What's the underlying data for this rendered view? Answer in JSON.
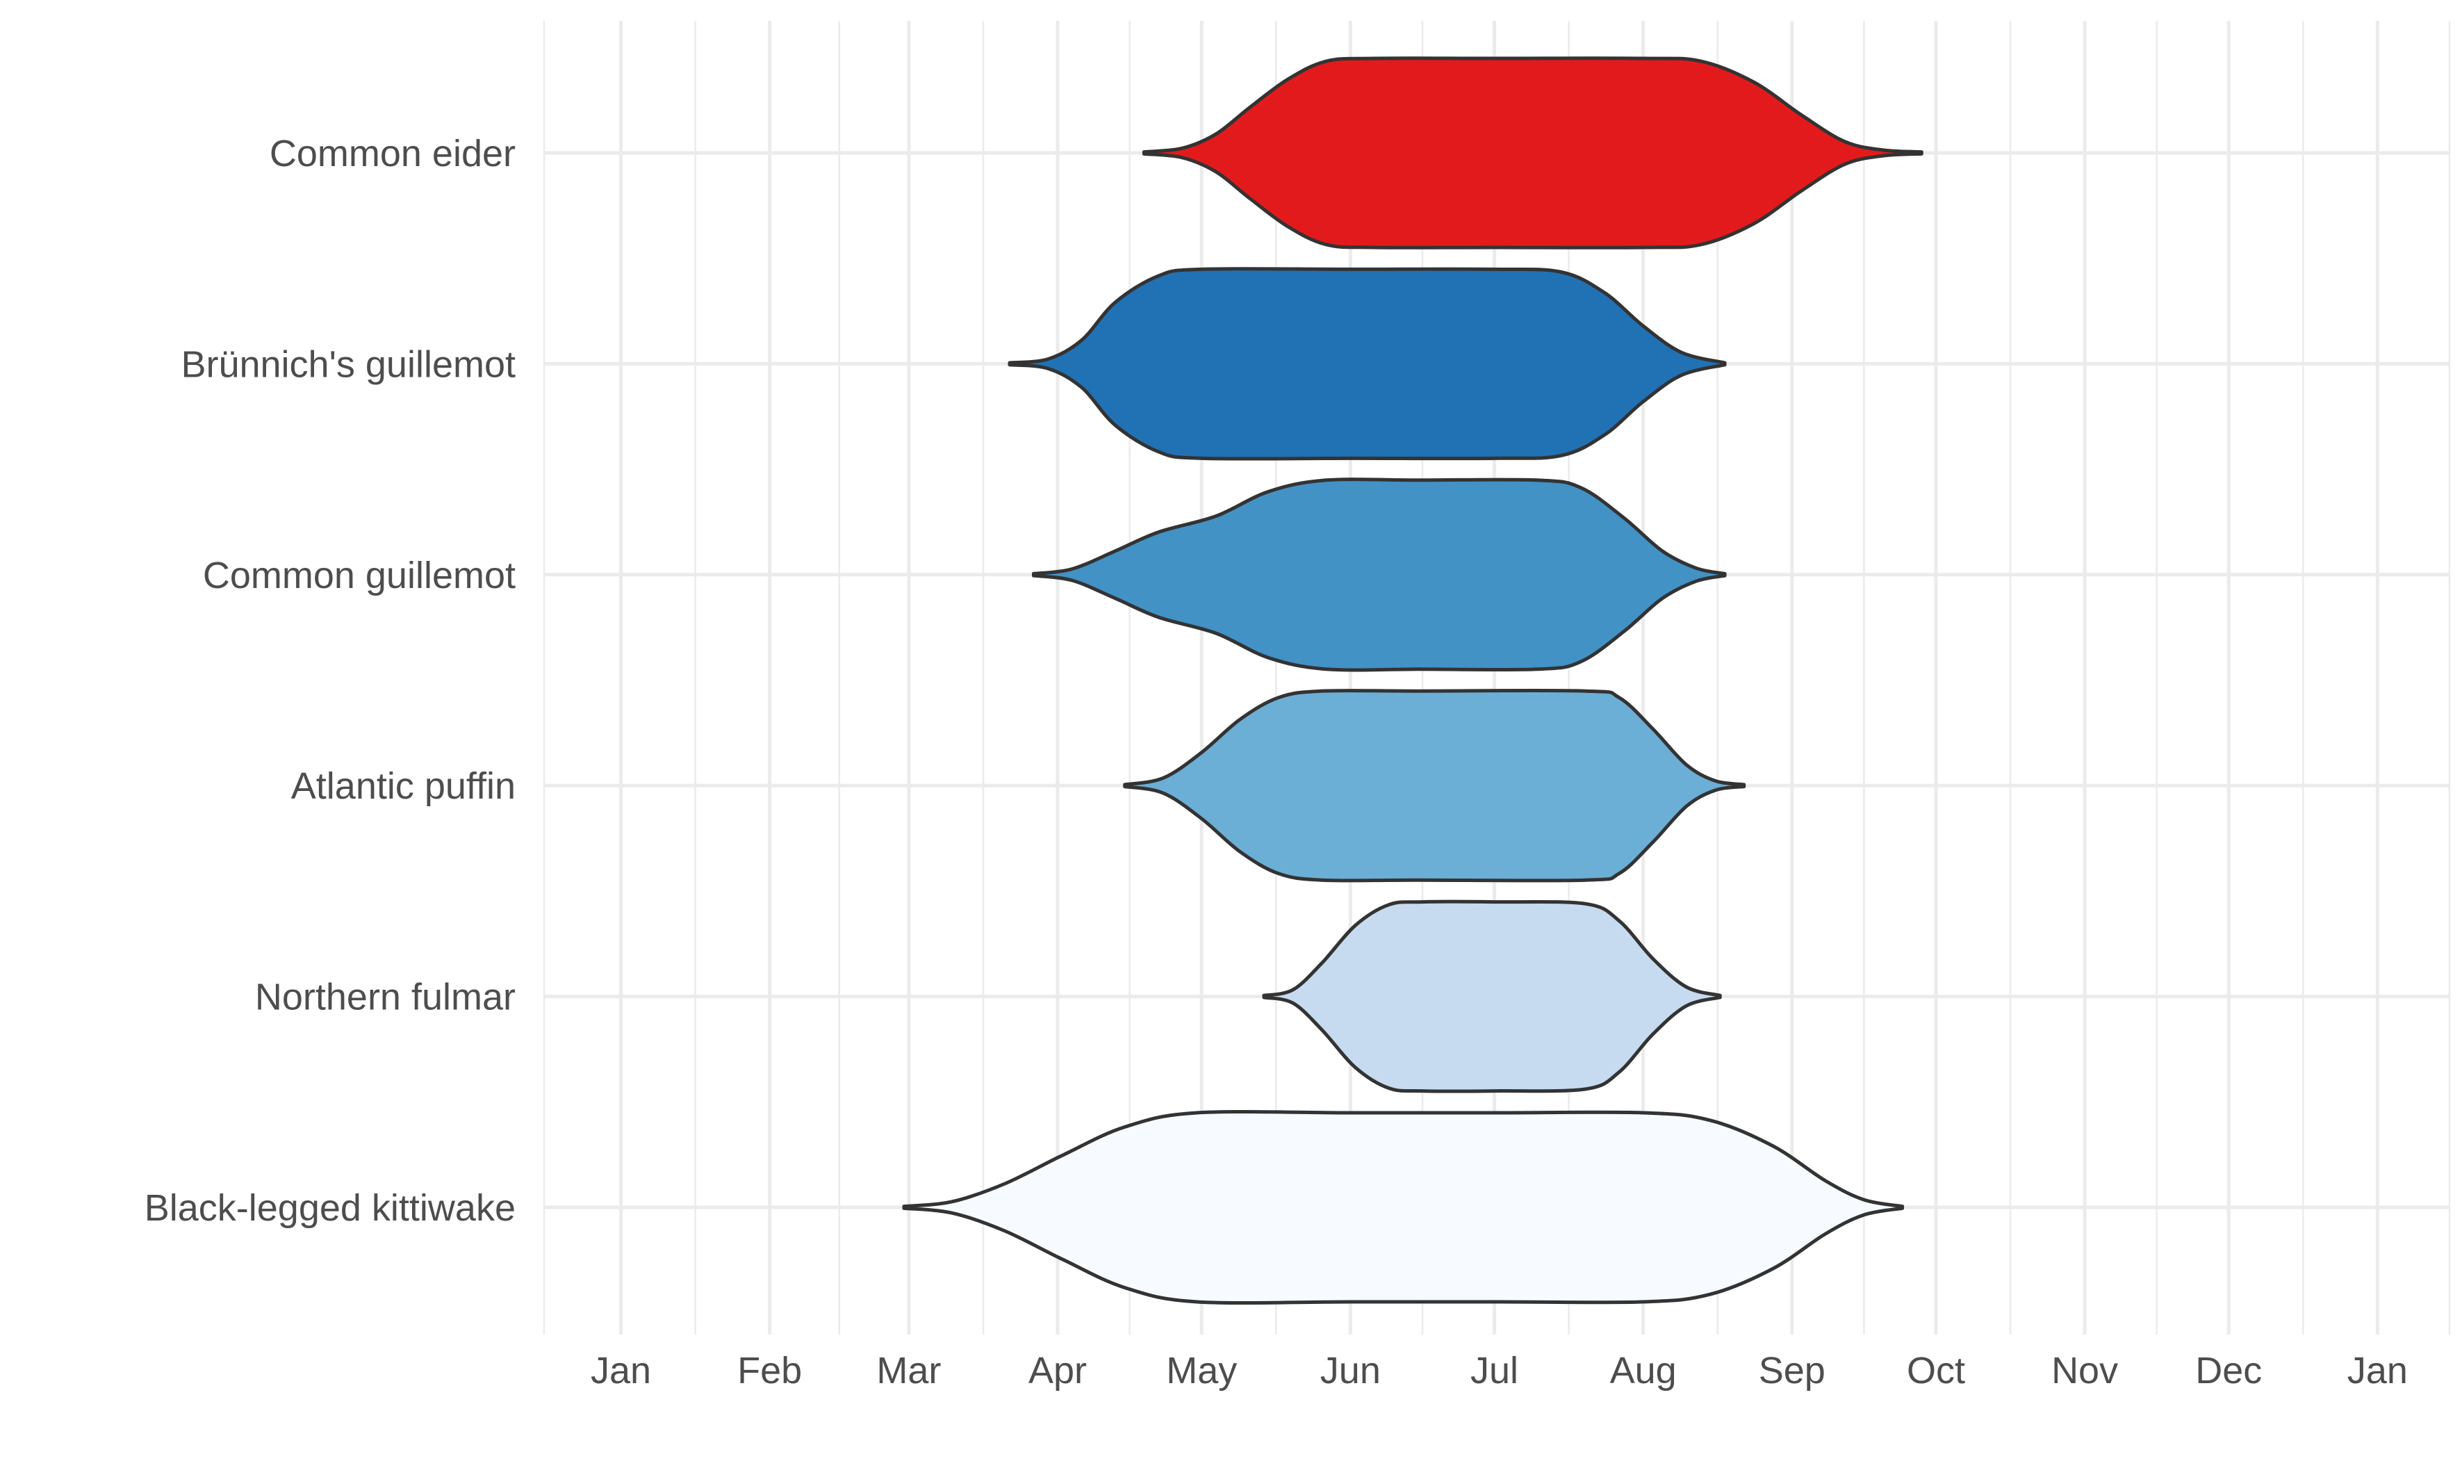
{
  "chart_data": {
    "type": "violin",
    "orientation": "horizontal",
    "title": "",
    "xlabel": "",
    "ylabel": "",
    "x_ticks": [
      "2020-01-01",
      "2020-02-01",
      "2020-03-01",
      "2020-04-01",
      "2020-05-01",
      "2020-06-01",
      "2020-07-01",
      "2020-08-01",
      "2020-09-01",
      "2020-10-01",
      "2020-11-01",
      "2020-12-01",
      "2021-01-01"
    ],
    "x_tick_labels": [
      "Jan",
      "Feb",
      "Mar",
      "Apr",
      "May",
      "Jun",
      "Jul",
      "Aug",
      "Sep",
      "Oct",
      "Nov",
      "Dec",
      "Jan"
    ],
    "xlim": [
      "2019-12-16",
      "2021-01-16"
    ],
    "grid": true,
    "legend": "none",
    "series": [
      {
        "name": "Common eider",
        "color": "#e31a1c",
        "start": "2020-04-19",
        "end": "2020-09-28",
        "density": [
          [
            "2020-04-19",
            0.01
          ],
          [
            "2020-04-27",
            0.05
          ],
          [
            "2020-05-04",
            0.2
          ],
          [
            "2020-05-11",
            0.48
          ],
          [
            "2020-05-19",
            0.78
          ],
          [
            "2020-05-27",
            0.97
          ],
          [
            "2020-06-06",
            1.0
          ],
          [
            "2020-07-01",
            1.0
          ],
          [
            "2020-08-01",
            1.0
          ],
          [
            "2020-08-13",
            0.97
          ],
          [
            "2020-08-24",
            0.75
          ],
          [
            "2020-09-03",
            0.4
          ],
          [
            "2020-09-12",
            0.12
          ],
          [
            "2020-09-20",
            0.03
          ],
          [
            "2020-09-28",
            0.01
          ]
        ]
      },
      {
        "name": "Brünnich's guillemot",
        "color": "#2171b5",
        "start": "2020-03-22",
        "end": "2020-08-18",
        "density": [
          [
            "2020-03-22",
            0.01
          ],
          [
            "2020-03-30",
            0.05
          ],
          [
            "2020-04-06",
            0.25
          ],
          [
            "2020-04-13",
            0.65
          ],
          [
            "2020-04-22",
            0.93
          ],
          [
            "2020-05-01",
            1.0
          ],
          [
            "2020-06-01",
            1.0
          ],
          [
            "2020-07-01",
            1.0
          ],
          [
            "2020-07-15",
            0.97
          ],
          [
            "2020-07-24",
            0.75
          ],
          [
            "2020-08-01",
            0.4
          ],
          [
            "2020-08-09",
            0.12
          ],
          [
            "2020-08-18",
            0.01
          ]
        ]
      },
      {
        "name": "Common guillemot",
        "color": "#4292c6",
        "start": "2020-03-27",
        "end": "2020-08-18",
        "density": [
          [
            "2020-03-27",
            0.01
          ],
          [
            "2020-04-04",
            0.06
          ],
          [
            "2020-04-13",
            0.25
          ],
          [
            "2020-04-22",
            0.45
          ],
          [
            "2020-05-04",
            0.62
          ],
          [
            "2020-05-15",
            0.88
          ],
          [
            "2020-05-27",
            1.0
          ],
          [
            "2020-06-15",
            1.0
          ],
          [
            "2020-07-10",
            1.0
          ],
          [
            "2020-07-19",
            0.92
          ],
          [
            "2020-07-28",
            0.6
          ],
          [
            "2020-08-05",
            0.25
          ],
          [
            "2020-08-12",
            0.07
          ],
          [
            "2020-08-18",
            0.01
          ]
        ]
      },
      {
        "name": "Atlantic puffin",
        "color": "#6baed6",
        "start": "2020-04-15",
        "end": "2020-08-22",
        "density": [
          [
            "2020-04-15",
            0.01
          ],
          [
            "2020-04-23",
            0.08
          ],
          [
            "2020-05-01",
            0.35
          ],
          [
            "2020-05-09",
            0.7
          ],
          [
            "2020-05-17",
            0.93
          ],
          [
            "2020-05-26",
            1.0
          ],
          [
            "2020-06-15",
            1.0
          ],
          [
            "2020-07-20",
            1.0
          ],
          [
            "2020-07-27",
            0.93
          ],
          [
            "2020-08-03",
            0.6
          ],
          [
            "2020-08-10",
            0.22
          ],
          [
            "2020-08-16",
            0.05
          ],
          [
            "2020-08-22",
            0.01
          ]
        ]
      },
      {
        "name": "Northern fulmar",
        "color": "#c6dbef",
        "start": "2020-05-14",
        "end": "2020-08-17",
        "density": [
          [
            "2020-05-14",
            0.01
          ],
          [
            "2020-05-20",
            0.07
          ],
          [
            "2020-05-26",
            0.35
          ],
          [
            "2020-06-02",
            0.75
          ],
          [
            "2020-06-09",
            0.97
          ],
          [
            "2020-06-16",
            1.0
          ],
          [
            "2020-07-01",
            1.0
          ],
          [
            "2020-07-20",
            0.98
          ],
          [
            "2020-07-27",
            0.8
          ],
          [
            "2020-08-03",
            0.4
          ],
          [
            "2020-08-10",
            0.1
          ],
          [
            "2020-08-17",
            0.01
          ]
        ]
      },
      {
        "name": "Black-legged kittiwake",
        "color": "#f7fbff",
        "start": "2020-02-29",
        "end": "2020-09-24",
        "density": [
          [
            "2020-02-29",
            0.01
          ],
          [
            "2020-03-10",
            0.06
          ],
          [
            "2020-03-21",
            0.25
          ],
          [
            "2020-04-02",
            0.55
          ],
          [
            "2020-04-15",
            0.85
          ],
          [
            "2020-04-30",
            1.0
          ],
          [
            "2020-06-01",
            1.0
          ],
          [
            "2020-07-01",
            1.0
          ],
          [
            "2020-08-01",
            1.0
          ],
          [
            "2020-08-15",
            0.92
          ],
          [
            "2020-08-28",
            0.65
          ],
          [
            "2020-09-08",
            0.28
          ],
          [
            "2020-09-16",
            0.08
          ],
          [
            "2020-09-24",
            0.01
          ]
        ]
      }
    ]
  }
}
